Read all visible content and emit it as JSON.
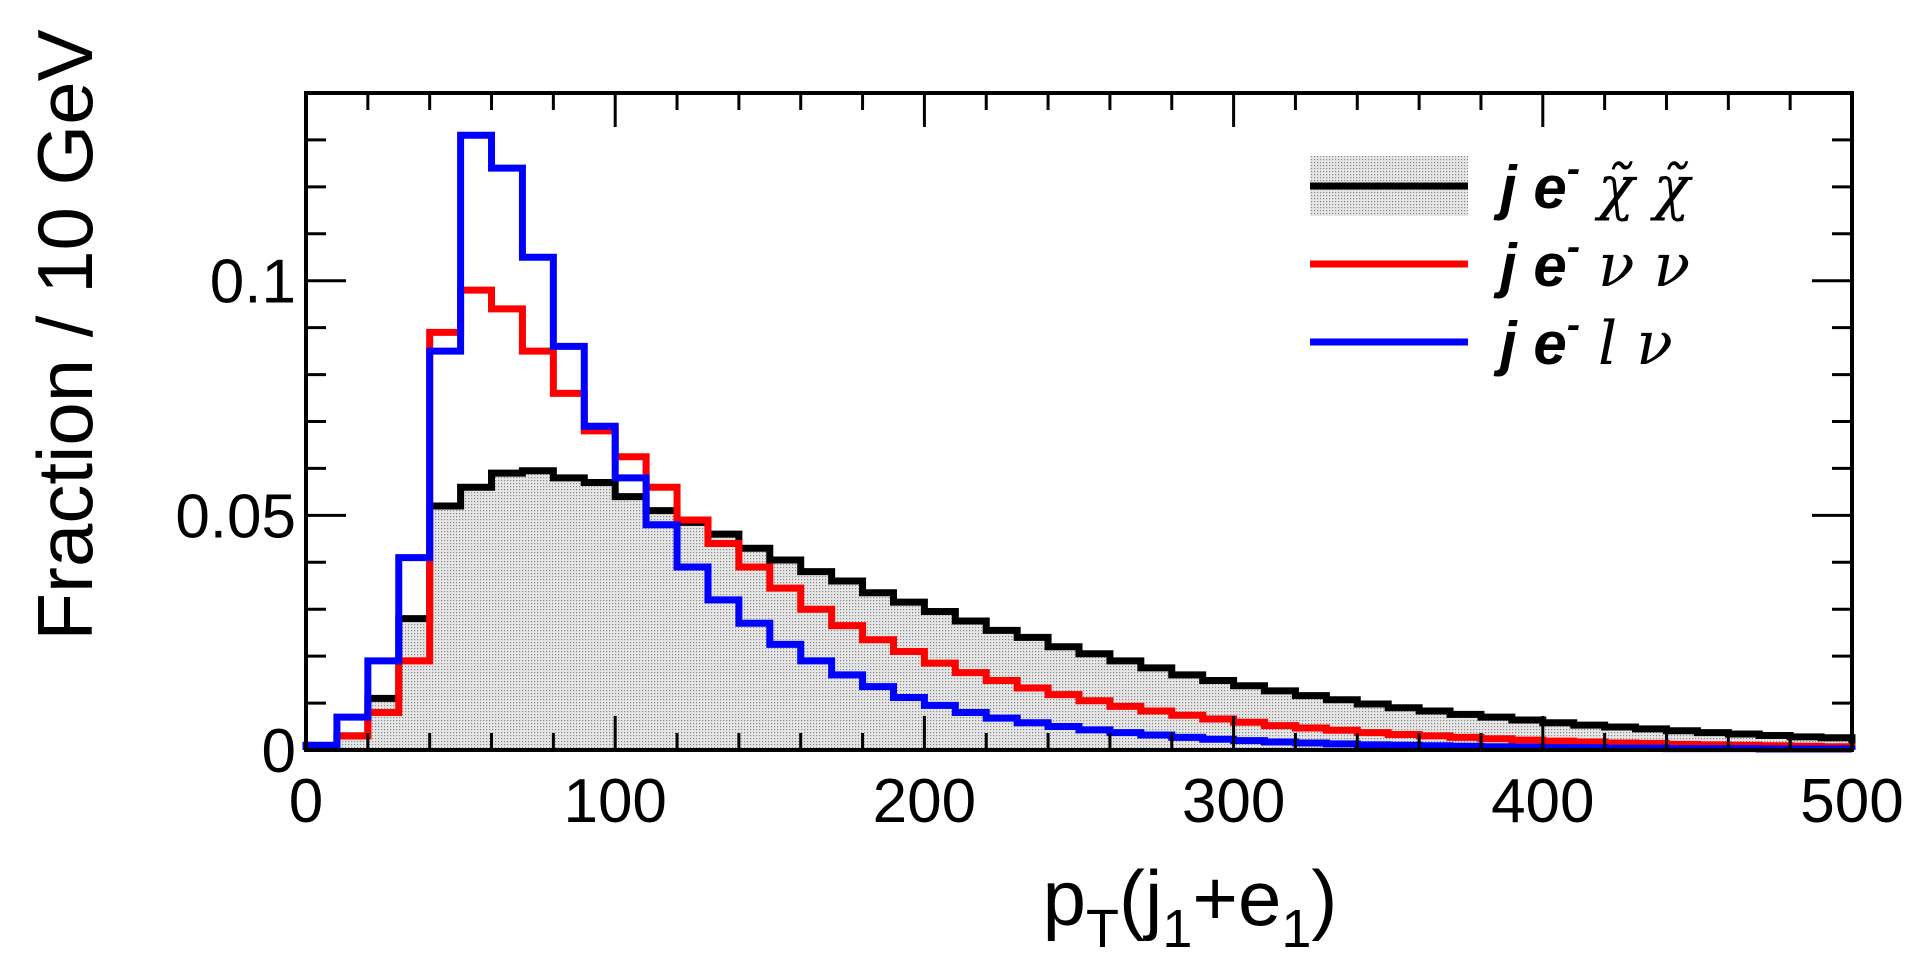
{
  "chart_data": {
    "type": "histogram",
    "xlabel_main": "p",
    "xlabel_sub": "T",
    "xlabel_rest_1": "(j",
    "xlabel_sub2": "1",
    "xlabel_rest_2": "+e",
    "xlabel_sub3": "1",
    "xlabel_rest_3": ")",
    "ylabel": "Fraction / 10 GeV",
    "xlim": [
      0,
      500
    ],
    "ylim": [
      0,
      0.14
    ],
    "bin_width": 10,
    "x_ticks": [
      "0",
      "100",
      "200",
      "300",
      "400",
      "500"
    ],
    "x_tick_values": [
      0,
      100,
      200,
      300,
      400,
      500
    ],
    "y_ticks": [
      "0",
      "0.05",
      "0.1"
    ],
    "y_tick_values": [
      0,
      0.05,
      0.1
    ],
    "series": [
      {
        "name": "j e- χ̃ χ̃",
        "color": "#000000",
        "filled": true,
        "values": [
          0.0005,
          0.003,
          0.011,
          0.028,
          0.052,
          0.056,
          0.059,
          0.0595,
          0.058,
          0.057,
          0.054,
          0.051,
          0.0485,
          0.046,
          0.043,
          0.0405,
          0.038,
          0.036,
          0.0335,
          0.0315,
          0.0295,
          0.0275,
          0.0255,
          0.024,
          0.022,
          0.0205,
          0.019,
          0.0175,
          0.016,
          0.0148,
          0.0137,
          0.0126,
          0.0116,
          0.0107,
          0.0098,
          0.009,
          0.0083,
          0.0076,
          0.007,
          0.0064,
          0.0058,
          0.0053,
          0.0049,
          0.0045,
          0.0041,
          0.0037,
          0.0034,
          0.0031,
          0.0028,
          0.0026
        ]
      },
      {
        "name": "j e- ν ν",
        "color": "#ff0000",
        "filled": false,
        "values": [
          0.0005,
          0.003,
          0.008,
          0.019,
          0.089,
          0.098,
          0.094,
          0.085,
          0.076,
          0.068,
          0.0625,
          0.056,
          0.049,
          0.044,
          0.039,
          0.0345,
          0.03,
          0.0265,
          0.0235,
          0.021,
          0.0185,
          0.0165,
          0.0148,
          0.0132,
          0.0118,
          0.0105,
          0.0093,
          0.0083,
          0.0074,
          0.0066,
          0.0059,
          0.0052,
          0.0047,
          0.0042,
          0.0037,
          0.0033,
          0.003,
          0.0027,
          0.0024,
          0.0021,
          0.0019,
          0.0017,
          0.0015,
          0.0014,
          0.0012,
          0.0011,
          0.001,
          0.0009,
          0.0008,
          0.0007
        ]
      },
      {
        "name": "j e- l ν",
        "color": "#0000ff",
        "filled": false,
        "values": [
          0.001,
          0.007,
          0.019,
          0.041,
          0.085,
          0.131,
          0.124,
          0.105,
          0.086,
          0.069,
          0.058,
          0.048,
          0.039,
          0.032,
          0.027,
          0.0225,
          0.019,
          0.016,
          0.0135,
          0.0112,
          0.0095,
          0.008,
          0.0068,
          0.0058,
          0.005,
          0.0043,
          0.0037,
          0.0032,
          0.0027,
          0.0023,
          0.002,
          0.0017,
          0.0015,
          0.0013,
          0.0011,
          0.001,
          0.0009,
          0.0008,
          0.0007,
          0.0006,
          0.0005,
          0.0005,
          0.0004,
          0.0004,
          0.0003,
          0.0003,
          0.0003,
          0.0002,
          0.0002,
          0.0002
        ]
      }
    ],
    "legend": {
      "placement": "top-right",
      "entries": [
        {
          "prefix": "j e",
          "sup": "-",
          "suffix": "χ̃  χ̃",
          "color": "#000000",
          "filled": true
        },
        {
          "prefix": "j e",
          "sup": "-",
          "suffix": "ν  ν",
          "color": "#ff0000",
          "filled": false
        },
        {
          "prefix": "j e",
          "sup": "-",
          "suffix": "l  ν",
          "color": "#0000ff",
          "filled": false
        }
      ]
    }
  }
}
